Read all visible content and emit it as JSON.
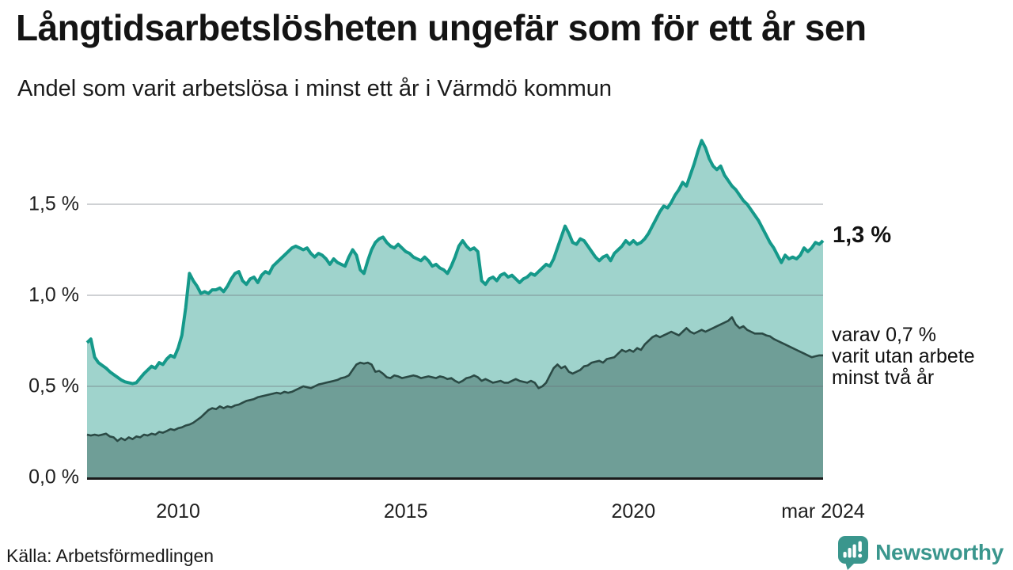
{
  "header": {
    "title": "Långtidsarbetslösheten ungefär som för ett år sen",
    "subtitle": "Andel som varit arbetslösa i minst ett år i Värmdö kommun"
  },
  "footer": {
    "source": "Källa: Arbetsförmedlingen",
    "logo_text": "Newsworthy"
  },
  "chart_data": {
    "type": "area",
    "title": "Långtidsarbetslösheten ungefär som för ett år sen",
    "subtitle": "Andel som varit arbetslösa i minst ett år i Värmdö kommun",
    "ylabel": "",
    "xlabel": "",
    "ylim": [
      0,
      1.93
    ],
    "grid": "horizontal",
    "y_ticks": [
      {
        "value": 1.5,
        "label": "1,5 %",
        "gridline": true
      },
      {
        "value": 1.0,
        "label": "1,0 %",
        "gridline": true
      },
      {
        "value": 0.5,
        "label": "0,5 %",
        "gridline": true
      },
      {
        "value": 0.0,
        "label": "0,0 %",
        "gridline": false
      }
    ],
    "x_ticks": [
      {
        "index": 24,
        "label": "2010"
      },
      {
        "index": 84,
        "label": "2015"
      },
      {
        "index": 144,
        "label": "2020"
      },
      {
        "index": 194,
        "label": "mar 2024"
      }
    ],
    "annotations": {
      "last_value_total": "1,3 %",
      "subseries_lines": [
        "varav 0,7 %",
        "varit utan arbete",
        "minst två år"
      ]
    },
    "colors": {
      "total_line": "#15998a",
      "total_fill": "#9fd3cc",
      "two_year_line": "#2b4a45",
      "two_year_fill": "#6f9e97",
      "grid": "#d8dadd",
      "axis": "#1a1a1a",
      "brand": "#3a968d"
    },
    "series": [
      {
        "name": "Arbetslösa minst ett år (andel, %)",
        "end_label": "1,3 %",
        "values": [
          0.74,
          0.76,
          0.66,
          0.63,
          0.615,
          0.6,
          0.58,
          0.565,
          0.55,
          0.535,
          0.525,
          0.52,
          0.515,
          0.52,
          0.545,
          0.57,
          0.59,
          0.61,
          0.6,
          0.63,
          0.62,
          0.65,
          0.67,
          0.66,
          0.71,
          0.78,
          0.93,
          1.12,
          1.08,
          1.05,
          1.01,
          1.02,
          1.01,
          1.03,
          1.03,
          1.04,
          1.02,
          1.05,
          1.09,
          1.12,
          1.13,
          1.08,
          1.06,
          1.09,
          1.1,
          1.07,
          1.11,
          1.13,
          1.12,
          1.16,
          1.18,
          1.2,
          1.22,
          1.24,
          1.26,
          1.27,
          1.26,
          1.25,
          1.26,
          1.23,
          1.21,
          1.23,
          1.22,
          1.2,
          1.17,
          1.2,
          1.18,
          1.17,
          1.16,
          1.21,
          1.25,
          1.22,
          1.14,
          1.12,
          1.19,
          1.25,
          1.29,
          1.31,
          1.32,
          1.29,
          1.27,
          1.26,
          1.28,
          1.26,
          1.24,
          1.23,
          1.21,
          1.2,
          1.19,
          1.21,
          1.19,
          1.16,
          1.17,
          1.15,
          1.14,
          1.12,
          1.16,
          1.21,
          1.27,
          1.3,
          1.27,
          1.25,
          1.26,
          1.24,
          1.08,
          1.06,
          1.09,
          1.1,
          1.08,
          1.11,
          1.12,
          1.1,
          1.11,
          1.09,
          1.07,
          1.09,
          1.1,
          1.12,
          1.11,
          1.13,
          1.15,
          1.17,
          1.16,
          1.2,
          1.26,
          1.32,
          1.38,
          1.34,
          1.29,
          1.28,
          1.31,
          1.3,
          1.27,
          1.24,
          1.21,
          1.19,
          1.21,
          1.22,
          1.19,
          1.23,
          1.25,
          1.27,
          1.3,
          1.28,
          1.3,
          1.28,
          1.29,
          1.31,
          1.34,
          1.38,
          1.42,
          1.46,
          1.49,
          1.48,
          1.51,
          1.55,
          1.58,
          1.62,
          1.6,
          1.66,
          1.72,
          1.79,
          1.85,
          1.81,
          1.75,
          1.71,
          1.69,
          1.71,
          1.66,
          1.63,
          1.6,
          1.58,
          1.55,
          1.52,
          1.5,
          1.47,
          1.44,
          1.41,
          1.37,
          1.33,
          1.29,
          1.26,
          1.22,
          1.18,
          1.22,
          1.2,
          1.21,
          1.2,
          1.22,
          1.26,
          1.24,
          1.26,
          1.29,
          1.28,
          1.3
        ]
      },
      {
        "name": "varav utan arbete minst två år (andel, %)",
        "end_label": "varav 0,7 % varit utan arbete minst två år",
        "values": [
          0.235,
          0.23,
          0.235,
          0.23,
          0.235,
          0.24,
          0.225,
          0.22,
          0.2,
          0.215,
          0.205,
          0.22,
          0.21,
          0.225,
          0.22,
          0.235,
          0.23,
          0.24,
          0.235,
          0.25,
          0.245,
          0.255,
          0.265,
          0.26,
          0.27,
          0.275,
          0.285,
          0.29,
          0.3,
          0.315,
          0.33,
          0.35,
          0.37,
          0.38,
          0.375,
          0.39,
          0.38,
          0.39,
          0.385,
          0.395,
          0.4,
          0.41,
          0.42,
          0.425,
          0.43,
          0.44,
          0.445,
          0.45,
          0.455,
          0.46,
          0.465,
          0.46,
          0.47,
          0.465,
          0.47,
          0.48,
          0.49,
          0.5,
          0.495,
          0.49,
          0.5,
          0.51,
          0.515,
          0.52,
          0.525,
          0.53,
          0.535,
          0.545,
          0.55,
          0.56,
          0.59,
          0.62,
          0.63,
          0.625,
          0.63,
          0.62,
          0.58,
          0.585,
          0.57,
          0.55,
          0.545,
          0.56,
          0.555,
          0.545,
          0.55,
          0.555,
          0.56,
          0.555,
          0.545,
          0.55,
          0.555,
          0.55,
          0.545,
          0.555,
          0.55,
          0.54,
          0.545,
          0.53,
          0.52,
          0.53,
          0.545,
          0.55,
          0.56,
          0.55,
          0.53,
          0.54,
          0.53,
          0.52,
          0.525,
          0.53,
          0.52,
          0.52,
          0.53,
          0.54,
          0.53,
          0.525,
          0.52,
          0.53,
          0.52,
          0.49,
          0.5,
          0.52,
          0.56,
          0.6,
          0.62,
          0.6,
          0.61,
          0.58,
          0.57,
          0.58,
          0.59,
          0.61,
          0.615,
          0.63,
          0.635,
          0.64,
          0.63,
          0.65,
          0.655,
          0.66,
          0.68,
          0.7,
          0.69,
          0.7,
          0.69,
          0.71,
          0.7,
          0.73,
          0.75,
          0.77,
          0.78,
          0.77,
          0.78,
          0.79,
          0.8,
          0.79,
          0.78,
          0.8,
          0.82,
          0.8,
          0.79,
          0.8,
          0.81,
          0.8,
          0.81,
          0.82,
          0.83,
          0.84,
          0.85,
          0.86,
          0.88,
          0.84,
          0.82,
          0.83,
          0.81,
          0.8,
          0.79,
          0.79,
          0.79,
          0.78,
          0.775,
          0.76,
          0.75,
          0.74,
          0.73,
          0.72,
          0.71,
          0.7,
          0.69,
          0.68,
          0.67,
          0.66,
          0.665,
          0.67,
          0.67
        ]
      }
    ]
  }
}
